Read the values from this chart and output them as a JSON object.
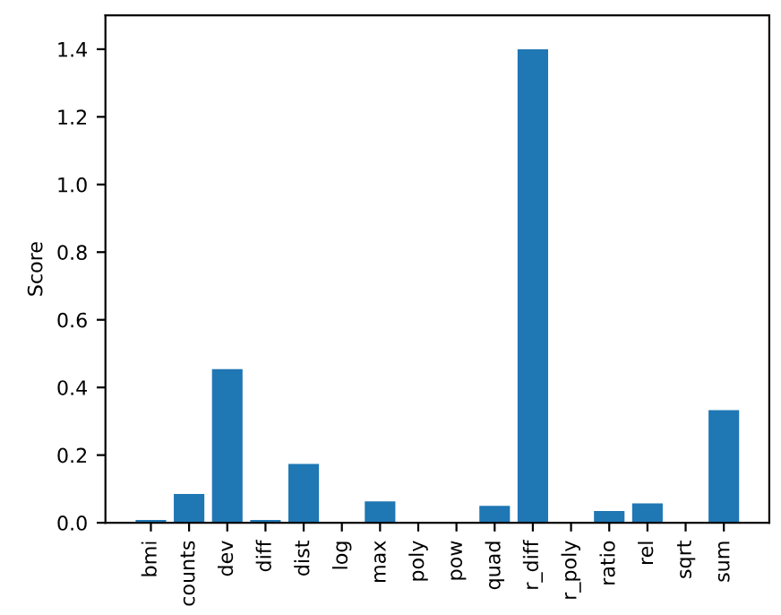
{
  "chart_data": {
    "type": "bar",
    "ylabel": "Score",
    "categories": [
      "bmi",
      "counts",
      "dev",
      "diff",
      "dist",
      "log",
      "max",
      "poly",
      "pow",
      "quad",
      "r_diff",
      "r_poly",
      "ratio",
      "rel",
      "sqrt",
      "sum"
    ],
    "values": [
      0.008,
      0.085,
      0.454,
      0.008,
      0.174,
      0,
      0.063,
      0,
      0,
      0.05,
      1.4,
      0,
      0.035,
      0.057,
      0,
      0.333
    ],
    "color": "#1f77b4",
    "ylim": [
      0,
      1.5
    ],
    "yticks": [
      {
        "value": 0,
        "label": "0.0"
      },
      0.2,
      0.4,
      0.6,
      0.8,
      {
        "value": 1,
        "label": "1.0"
      },
      1.2,
      1.4
    ],
    "grid": false
  }
}
